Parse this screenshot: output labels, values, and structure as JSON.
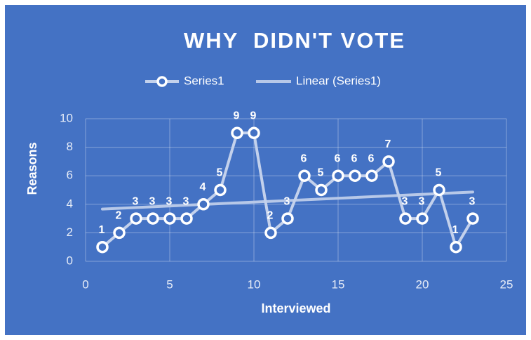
{
  "chart_data": {
    "type": "line",
    "title": "WHY  DIDN'T VOTE",
    "x_label": "Interviewed",
    "y_label": "Reasons",
    "x": [
      1,
      2,
      3,
      4,
      5,
      6,
      7,
      8,
      9,
      10,
      11,
      12,
      13,
      14,
      15,
      16,
      17,
      18,
      19,
      20,
      21,
      22,
      23
    ],
    "series": [
      {
        "name": "Series1",
        "color": "#c3d1ec",
        "values": [
          1,
          2,
          3,
          3,
          3,
          3,
          4,
          5,
          9,
          9,
          2,
          3,
          6,
          5,
          6,
          6,
          6,
          7,
          3,
          3,
          5,
          1,
          3
        ]
      }
    ],
    "trendline": {
      "name": "Linear (Series1)",
      "color": "#b7c8e8"
    },
    "xlim": [
      0,
      25
    ],
    "xticks": [
      0,
      5,
      10,
      15,
      20,
      25
    ],
    "ylim": [
      0,
      10
    ],
    "yticks": [
      0,
      2,
      4,
      6,
      8,
      10
    ],
    "grid": true,
    "legend": "top",
    "data_labels": true,
    "background": "#4472c4"
  }
}
